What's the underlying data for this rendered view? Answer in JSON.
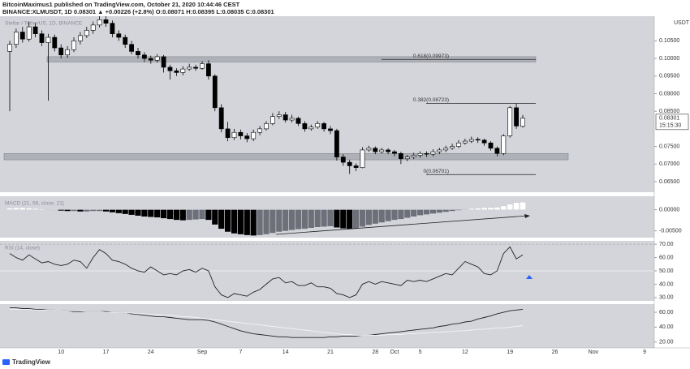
{
  "header": {
    "author_line": "BitcoinMaximus1 published on TradingView.com, October 21, 2020 10:44:46 CEST",
    "symbol_line": "BINANCE:XLMUSDT, 1D 0.08301 ▲ +0.00226 (+2.8%) O:0.08071 H:0.08395 L:0.08035 C:0.08301"
  },
  "footer": "TradingView",
  "chart_data": [
    {
      "type": "candlestick",
      "title": "Stellar / TetherUS, 1D, BINANCE",
      "unit": "USDT",
      "open": [
        0.102,
        0.104,
        0.1075,
        0.1055,
        0.109,
        0.107,
        0.1045,
        0.106,
        0.103,
        0.101,
        0.1025,
        0.105,
        0.1065,
        0.108,
        0.1095,
        0.111,
        0.11,
        0.107,
        0.106,
        0.104,
        0.102,
        0.101,
        0.1,
        0.0995,
        0.1005,
        0.0975,
        0.0965,
        0.096,
        0.097,
        0.0975,
        0.0972,
        0.0985,
        0.095,
        0.086,
        0.08,
        0.0775,
        0.079,
        0.078,
        0.0772,
        0.079,
        0.08,
        0.0815,
        0.0835,
        0.084,
        0.0825,
        0.083,
        0.0815,
        0.08,
        0.0805,
        0.0815,
        0.08,
        0.0795,
        0.072,
        0.0705,
        0.0695,
        0.069,
        0.074,
        0.0745,
        0.0735,
        0.074,
        0.0735,
        0.073,
        0.0715,
        0.072,
        0.0725,
        0.073,
        0.0728,
        0.0735,
        0.074,
        0.0745,
        0.075,
        0.076,
        0.0765,
        0.077,
        0.0768,
        0.076,
        0.0745,
        0.073,
        0.078,
        0.086,
        0.08071
      ],
      "high": [
        0.105,
        0.1085,
        0.109,
        0.1105,
        0.11,
        0.108,
        0.107,
        0.1068,
        0.104,
        0.1035,
        0.106,
        0.1075,
        0.109,
        0.1105,
        0.112,
        0.112,
        0.1108,
        0.108,
        0.1068,
        0.105,
        0.103,
        0.1018,
        0.1008,
        0.1012,
        0.101,
        0.0982,
        0.0972,
        0.0978,
        0.0985,
        0.0982,
        0.0992,
        0.0995,
        0.0955,
        0.087,
        0.082,
        0.08,
        0.0798,
        0.0788,
        0.0798,
        0.0808,
        0.0822,
        0.0845,
        0.085,
        0.0848,
        0.084,
        0.0835,
        0.0822,
        0.0812,
        0.0822,
        0.082,
        0.0808,
        0.08,
        0.0728,
        0.0712,
        0.0702,
        0.0748,
        0.0752,
        0.075,
        0.0746,
        0.0745,
        0.074,
        0.0735,
        0.0726,
        0.0732,
        0.0736,
        0.0736,
        0.0742,
        0.0746,
        0.0752,
        0.0758,
        0.0768,
        0.0772,
        0.0778,
        0.0776,
        0.0772,
        0.0765,
        0.075,
        0.0785,
        0.0865,
        0.0872,
        0.08395
      ],
      "low": [
        0.085,
        0.103,
        0.1045,
        0.1048,
        0.106,
        0.1035,
        0.088,
        0.102,
        0.1,
        0.1002,
        0.1018,
        0.104,
        0.1058,
        0.107,
        0.1088,
        0.109,
        0.106,
        0.105,
        0.103,
        0.1012,
        0.1,
        0.099,
        0.0985,
        0.0988,
        0.096,
        0.094,
        0.095,
        0.0952,
        0.0965,
        0.0965,
        0.0968,
        0.094,
        0.085,
        0.079,
        0.0765,
        0.0768,
        0.077,
        0.0762,
        0.0765,
        0.0782,
        0.0795,
        0.081,
        0.0828,
        0.0818,
        0.0818,
        0.0808,
        0.0792,
        0.0795,
        0.08,
        0.0792,
        0.0785,
        0.071,
        0.0695,
        0.0672,
        0.068,
        0.0688,
        0.0735,
        0.0728,
        0.073,
        0.0728,
        0.0722,
        0.07,
        0.0708,
        0.0714,
        0.0718,
        0.072,
        0.0722,
        0.0728,
        0.0734,
        0.074,
        0.0745,
        0.0755,
        0.076,
        0.076,
        0.0752,
        0.0738,
        0.0722,
        0.0725,
        0.0775,
        0.08,
        0.08035
      ],
      "close": [
        0.104,
        0.1075,
        0.1055,
        0.109,
        0.107,
        0.1045,
        0.106,
        0.103,
        0.101,
        0.1025,
        0.105,
        0.1065,
        0.108,
        0.1095,
        0.111,
        0.11,
        0.107,
        0.106,
        0.104,
        0.102,
        0.101,
        0.1,
        0.0995,
        0.1005,
        0.0975,
        0.0965,
        0.096,
        0.097,
        0.0975,
        0.0972,
        0.0985,
        0.095,
        0.086,
        0.08,
        0.0775,
        0.079,
        0.078,
        0.0772,
        0.079,
        0.08,
        0.0815,
        0.0835,
        0.084,
        0.0825,
        0.083,
        0.0815,
        0.08,
        0.0805,
        0.0815,
        0.08,
        0.0795,
        0.072,
        0.0705,
        0.0695,
        0.069,
        0.074,
        0.0745,
        0.0735,
        0.074,
        0.0735,
        0.073,
        0.0715,
        0.072,
        0.0725,
        0.073,
        0.0728,
        0.0735,
        0.074,
        0.0745,
        0.075,
        0.076,
        0.0765,
        0.077,
        0.0768,
        0.076,
        0.0745,
        0.073,
        0.078,
        0.086,
        0.0808,
        0.08301
      ],
      "up_color": "#ffffff",
      "down_color": "#000000",
      "ylim": [
        0.062,
        0.112
      ],
      "yticks": [
        {
          "value": 0.105,
          "label": "0.10500"
        },
        {
          "value": 0.1,
          "label": "0.10000"
        },
        {
          "value": 0.095,
          "label": "0.09500"
        },
        {
          "value": 0.09,
          "label": "0.09000"
        },
        {
          "value": 0.085,
          "label": "0.08500"
        },
        {
          "value": 0.075,
          "label": "0.07500"
        },
        {
          "value": 0.07,
          "label": "0.07000"
        },
        {
          "value": 0.065,
          "label": "0.06500"
        }
      ],
      "zones": [
        {
          "from": 0.099,
          "to": 0.1005
        },
        {
          "from": 0.0712,
          "to": 0.073
        }
      ],
      "fib_levels": [
        {
          "label": "0.618(0.09973)",
          "value": 0.09973
        },
        {
          "label": "0.382(0.08723)",
          "value": 0.08723
        },
        {
          "label": "0(0.06701)",
          "value": 0.06701
        }
      ],
      "last_price": 0.08301,
      "countdown": "15:15:30",
      "xtick_labels": [
        "10",
        "17",
        "24",
        "Sep",
        "7",
        "14",
        "21",
        "28",
        "Oct",
        "5",
        "12",
        "19",
        "26",
        "Nov",
        "9"
      ]
    },
    {
      "type": "bar",
      "title": "MACD (21, 56, close, 21)",
      "values": [
        0.0004,
        0.0005,
        0.0005,
        0.0004,
        0.0003,
        0.0002,
        0.0001,
        0.0,
        -0.0002,
        -0.0003,
        -0.0003,
        -0.0004,
        -0.0004,
        -0.0003,
        -0.0003,
        -0.0004,
        -0.0006,
        -0.0008,
        -0.001,
        -0.0012,
        -0.0014,
        -0.0016,
        -0.0017,
        -0.0018,
        -0.002,
        -0.0022,
        -0.0024,
        -0.0025,
        -0.0024,
        -0.0023,
        -0.0022,
        -0.0024,
        -0.0035,
        -0.0045,
        -0.0052,
        -0.0056,
        -0.0058,
        -0.006,
        -0.0061,
        -0.006,
        -0.0058,
        -0.0055,
        -0.0052,
        -0.005,
        -0.0048,
        -0.0046,
        -0.0045,
        -0.0043,
        -0.0041,
        -0.004,
        -0.0039,
        -0.0042,
        -0.0044,
        -0.0045,
        -0.0044,
        -0.004,
        -0.0036,
        -0.0033,
        -0.003,
        -0.0027,
        -0.0024,
        -0.0022,
        -0.0019,
        -0.0016,
        -0.0013,
        -0.0011,
        -0.0009,
        -0.0007,
        -0.0005,
        -0.0003,
        -0.0001,
        0.0001,
        0.0003,
        0.0004,
        0.0005,
        0.0005,
        0.0006,
        0.0009,
        0.0013,
        0.0017,
        0.0018
      ],
      "ylim": [
        -0.0066,
        0.0032
      ],
      "yticks": [
        {
          "value": 0,
          "label": "0.00000"
        },
        {
          "value": -0.005,
          "label": "-0.00500"
        }
      ]
    },
    {
      "type": "line",
      "title": "RSI (14, close)",
      "series": [
        {
          "color": "#222222",
          "values": [
            63,
            60,
            58,
            62,
            59,
            56,
            57,
            55,
            54,
            55,
            58,
            57,
            52,
            60,
            66,
            63,
            58,
            57,
            55,
            52,
            50,
            49,
            53,
            50,
            47,
            48,
            47,
            50,
            51,
            49,
            52,
            50,
            38,
            32,
            30,
            33,
            32,
            31,
            34,
            36,
            40,
            44,
            45,
            41,
            42,
            39,
            39,
            41,
            38,
            38,
            37,
            33,
            32,
            30,
            32,
            40,
            42,
            40,
            42,
            41,
            40,
            39,
            43,
            42,
            43,
            42,
            44,
            46,
            48,
            47,
            52,
            57,
            55,
            53,
            48,
            47,
            50,
            63,
            68,
            59,
            62
          ]
        }
      ],
      "levels": [
        70,
        50
      ],
      "ylim": [
        27.5,
        72.5
      ],
      "yticks": [
        {
          "value": 70,
          "label": "70.00"
        },
        {
          "value": 60,
          "label": "60.00"
        },
        {
          "value": 50,
          "label": "50.00"
        },
        {
          "value": 40,
          "label": "40.00"
        },
        {
          "value": 30,
          "label": "30.00"
        }
      ]
    },
    {
      "type": "line",
      "series": [
        {
          "color": "#222222",
          "values": [
            66,
            66,
            65,
            65,
            64,
            64,
            63,
            63,
            62,
            62,
            61,
            61,
            61,
            61,
            61,
            61,
            60,
            60,
            59,
            58,
            57,
            56,
            55,
            54,
            54,
            53,
            52,
            51,
            50,
            50,
            50,
            49,
            47,
            44,
            41,
            38,
            35,
            33,
            31,
            30,
            29,
            28,
            27,
            27,
            26,
            26,
            26,
            26,
            26,
            26,
            27,
            27,
            28,
            28,
            28,
            29,
            29,
            30,
            31,
            32,
            33,
            34,
            35,
            36,
            37,
            38,
            39,
            41,
            42,
            44,
            45,
            47,
            48,
            51,
            53,
            55,
            58,
            60,
            62,
            63,
            64
          ]
        },
        {
          "color": "#f4f4f6",
          "values": [
            64,
            64,
            64,
            64,
            63,
            63,
            63,
            63,
            62,
            62,
            62,
            62,
            61,
            61,
            61,
            60,
            60,
            60,
            59,
            59,
            58,
            58,
            57,
            57,
            56,
            56,
            55,
            54,
            54,
            53,
            52,
            51,
            50,
            49,
            48,
            47,
            46,
            45,
            44,
            43,
            42,
            41,
            40,
            39,
            38,
            37,
            36,
            35,
            34,
            33,
            32,
            31,
            30,
            30,
            29,
            29,
            29,
            29,
            29,
            30,
            30,
            30,
            31,
            31,
            32,
            32,
            33,
            33,
            34,
            34,
            35,
            35,
            36,
            37,
            37,
            38,
            39,
            39,
            40,
            41,
            42
          ]
        }
      ],
      "ylim": [
        12,
        71
      ],
      "yticks": [
        {
          "value": 60,
          "label": "60.00"
        },
        {
          "value": 40,
          "label": "40.00"
        },
        {
          "value": 20,
          "label": "20.00"
        }
      ]
    }
  ]
}
